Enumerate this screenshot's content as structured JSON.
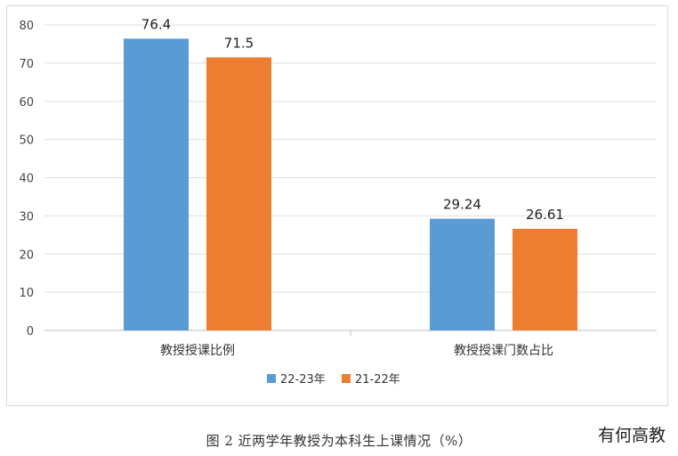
{
  "chart_data": {
    "type": "bar",
    "categories": [
      "教授授课比例",
      "教授授课门数占比"
    ],
    "series": [
      {
        "name": "22-23年",
        "values": [
          76.4,
          29.24
        ],
        "labels": [
          "76.4",
          "29.24"
        ],
        "color": "#5b9bd5"
      },
      {
        "name": "21-22年",
        "values": [
          71.5,
          26.61
        ],
        "labels": [
          "71.5",
          "26.61"
        ],
        "color": "#ed7d31"
      }
    ],
    "yticks": [
      "0",
      "10",
      "20",
      "30",
      "40",
      "50",
      "60",
      "70",
      "80"
    ],
    "ylim": [
      0,
      80
    ],
    "grid": true,
    "legend_position": "bottom-center"
  },
  "caption": "图 2  近两学年教授为本科生上课情况（%）",
  "watermark": "有何高教"
}
